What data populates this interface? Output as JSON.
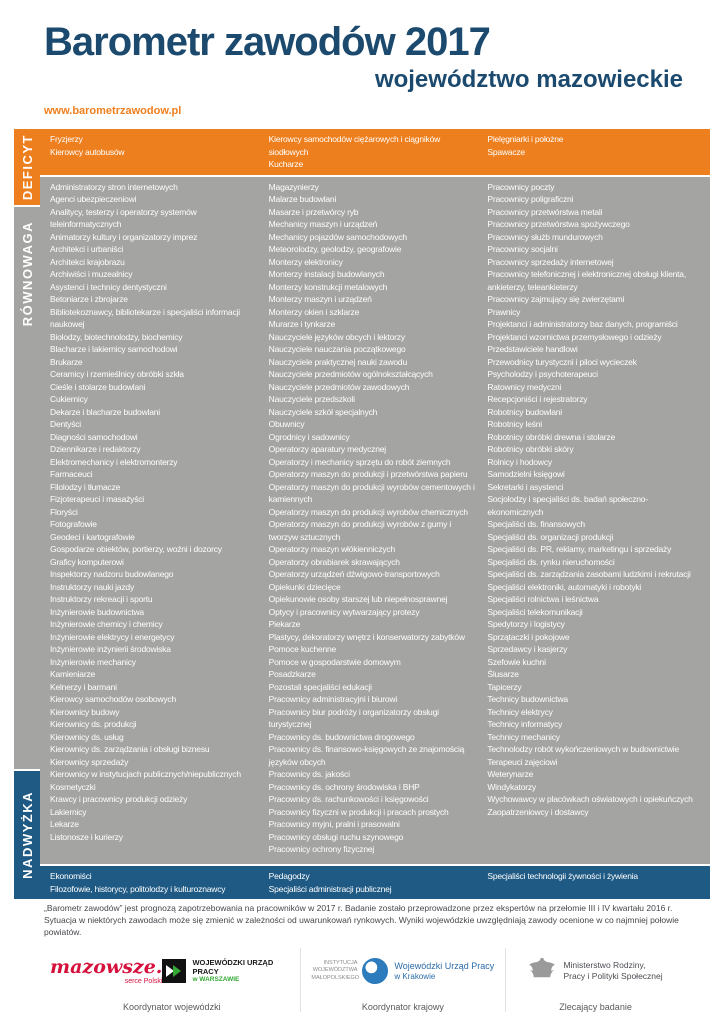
{
  "header": {
    "title": "Barometr zawodów 2017",
    "subtitle": "województwo mazowieckie",
    "url": "www.barometrzawodow.pl"
  },
  "colors": {
    "orange": "#ee7f1e",
    "gray": "#a4a4a2",
    "navy": "#1f5a84",
    "title_navy": "#1b4a6e"
  },
  "sections": [
    {
      "id": "deficyt",
      "label": "DEFICYT",
      "columns": [
        [
          "Fryzjerzy",
          "Kierowcy autobusów"
        ],
        [
          "Kierowcy samochodów ciężarowych i ciągników siodłowych",
          "Kucharze"
        ],
        [
          "Pielęgniarki i położne",
          "Spawacze"
        ]
      ]
    },
    {
      "id": "rownowaga",
      "label": "RÓWNOWAGA",
      "columns": [
        [
          "Administratorzy stron internetowych",
          "Agenci ubezpieczeniowi",
          "Analitycy, testerzy i operatorzy systemów teleinformatycznych",
          "Animatorzy kultury i organizatorzy imprez",
          "Architekci i urbaniści",
          "Architekci krajobrazu",
          "Archiwiści i muzealnicy",
          "Asystenci i technicy dentystyczni",
          "Betoniarze i zbrojarze",
          "Bibliotekoznawcy, bibliotekarze i specjaliści informacji naukowej",
          "Biolodzy, biotechnolodzy, biochemicy",
          "Blacharze i lakiernicy samochodowi",
          "Brukarze",
          "Ceramicy i rzemieślnicy obróbki szkła",
          "Cieśle i stolarze budowlani",
          "Cukiernicy",
          "Dekarze i blacharze budowlani",
          "Dentyści",
          "Diagności samochodowi",
          "Dziennikarze i redaktorzy",
          "Elektromechanicy i elektromonterzy",
          "Farmaceuci",
          "Filolodzy i tłumacze",
          "Fizjoterapeuci i masażyści",
          "Floryści",
          "Fotografowie",
          "Geodeci i kartografowie",
          "Gospodarze obiektów, portierzy, woźni i dozorcy",
          "Graficy komputerowi",
          "Inspektorzy nadzoru budowlanego",
          "Instruktorzy nauki jazdy",
          "Instruktorzy rekreacji i sportu",
          "Inżynierowie budownictwa",
          "Inżynierowie chemicy i chemicy",
          "Inżynierowie elektrycy i energetycy",
          "Inżynierowie inżynierii środowiska",
          "Inżynierowie mechanicy",
          "Kamieniarze",
          "Kelnerzy i barmani",
          "Kierowcy samochodów osobowych",
          "Kierownicy budowy",
          "Kierownicy ds. produkcji",
          "Kierownicy ds. usług",
          "Kierownicy ds. zarządzania i obsługi biznesu",
          "Kierownicy sprzedaży",
          "Kierownicy w instytucjach publicznych/niepublicznych",
          "Kosmetyczki",
          "Krawcy i pracownicy produkcji odzieży",
          "Lakiernicy",
          "Lekarze",
          "Listonosze i kurierzy"
        ],
        [
          "Magazynierzy",
          "Malarze budowlani",
          "Masarze i przetwórcy ryb",
          "Mechanicy maszyn i urządzeń",
          "Mechanicy pojazdów samochodowych",
          "Meteorolodzy, geolodzy, geografowie",
          "Monterzy elektronicy",
          "Monterzy instalacji budowlanych",
          "Monterzy konstrukcji metalowych",
          "Monterzy maszyn i urządzeń",
          "Monterzy okien i szklarze",
          "Murarze i tynkarze",
          "Nauczyciele języków obcych i lektorzy",
          "Nauczyciele nauczania początkowego",
          "Nauczyciele praktycznej nauki zawodu",
          "Nauczyciele przedmiotów ogólnokształcących",
          "Nauczyciele przedmiotów zawodowych",
          "Nauczyciele przedszkoli",
          "Nauczyciele szkół specjalnych",
          "Obuwnicy",
          "Ogrodnicy i sadownicy",
          "Operatorzy aparatury medycznej",
          "Operatorzy i mechanicy sprzętu do robót ziemnych",
          "Operatorzy maszyn do produkcji i przetwórstwa papieru",
          "Operatorzy maszyn do produkcji wyrobów cementowych i kamiennych",
          "Operatorzy maszyn do produkcji wyrobów chemicznych",
          "Operatorzy maszyn do produkcji wyrobów z gumy i tworzyw sztucznych",
          "Operatorzy maszyn włókienniczych",
          "Operatorzy obrabiarek skrawających",
          "Operatorzy urządzeń dźwigowo-transportowych",
          "Opiekunki dziecięce",
          "Opiekunowie osoby starszej lub niepełnosprawnej",
          "Optycy i pracownicy wytwarzający protezy",
          "Piekarze",
          "Plastycy, dekoratorzy wnętrz i konserwatorzy zabytków",
          "Pomoce kuchenne",
          "Pomoce w gospodarstwie domowym",
          "Posadzkarze",
          "Pozostali specjaliści edukacji",
          "Pracownicy administracyjni i biurowi",
          "Pracownicy biur podróży i organizatorzy obsługi turystycznej",
          "Pracownicy ds. budownictwa drogowego",
          "Pracownicy ds. finansowo-księgowych ze znajomością języków obcych",
          "Pracownicy ds. jakości",
          "Pracownicy ds. ochrony środowiska i BHP",
          "Pracownicy ds. rachunkowości i księgowości",
          "Pracownicy fizyczni w produkcji i pracach prostych",
          "Pracownicy myjni, pralni i prasowalni",
          "Pracownicy obsługi ruchu szynowego",
          "Pracownicy ochrony fizycznej"
        ],
        [
          "Pracownicy poczty",
          "Pracownicy poligraficzni",
          "Pracownicy przetwórstwa metali",
          "Pracownicy przetwórstwa spożywczego",
          "Pracownicy służb mundurowych",
          "Pracownicy socjalni",
          "Pracownicy sprzedaży internetowej",
          "Pracownicy telefonicznej i elektronicznej obsługi klienta, ankieterzy, teleankieterzy",
          "Pracownicy zajmujący się zwierzętami",
          "Prawnicy",
          "Projektanci i administratorzy baz danych, programiści",
          "Projektanci wzornictwa przemysłowego i odzieży",
          "Przedstawiciele handlowi",
          "Przewodnicy turystyczni i piloci wycieczek",
          "Psycholodzy i psychoterapeuci",
          "Ratownicy medyczni",
          "Recepcjoniści i rejestratorzy",
          "Robotnicy budowlani",
          "Robotnicy leśni",
          "Robotnicy obróbki drewna i stolarze",
          "Robotnicy obróbki skóry",
          "Rolnicy i hodowcy",
          "Samodzielni księgowi",
          "Sekretarki i asystenci",
          "Socjolodzy i specjaliści ds. badań społeczno-ekonomicznych",
          "Specjaliści ds. finansowych",
          "Specjaliści ds. organizacji produkcji",
          "Specjaliści ds. PR, reklamy, marketingu i sprzedaży",
          "Specjaliści ds. rynku nieruchomości",
          "Specjaliści ds. zarządzania zasobami ludzkimi i rekrutacji",
          "Specjaliści elektroniki, automatyki i robotyki",
          "Specjaliści rolnictwa i leśnictwa",
          "Specjaliści telekomunikacji",
          "Spedytorzy i logistycy",
          "Sprzątaczki i pokojowe",
          "Sprzedawcy i kasjerzy",
          "Szefowie kuchni",
          "Ślusarze",
          "Tapicerzy",
          "Technicy budownictwa",
          "Technicy elektrycy",
          "Technicy informatycy",
          "Technicy mechanicy",
          "Technolodzy robót wykończeniowych w budownictwie",
          "Terapeuci zajęciowi",
          "Weterynarze",
          "Windykatorzy",
          "Wychowawcy w placówkach oświatowych i opiekuńczych",
          "Zaopatrzeniowcy i dostawcy"
        ]
      ]
    },
    {
      "id": "nadwyzka",
      "label": "NADWYŻKA",
      "columns": [
        [
          "Ekonomiści",
          "Filozofowie, historycy, politolodzy i kulturoznawcy"
        ],
        [
          "Pedagodzy",
          "Specjaliści administracji publicznej"
        ],
        [
          "Specjaliści technologii żywności i żywienia"
        ]
      ]
    }
  ],
  "footnote": "„Barometr zawodów” jest prognozą zapotrzebowania na pracowników w 2017 r. Badanie zostało przeprowadzone przez ekspertów na przełomie III i IV kwartału 2016 r. Sytuacja w niektórych zawodach może się zmienić w zależności od uwarunkowań rynkowych. Wyniki wojewódzkie uwzględniają zawody ocenione w co najmniej połowie powiatów.",
  "footer": {
    "logos": {
      "mazowsze": {
        "text": "mazowsze.",
        "subtext": "serce Polski"
      },
      "wup_warszawa": {
        "line1": "WOJEWÓDZKI URZĄD PRACY",
        "line2": "w WARSZAWIE"
      },
      "wup_krakow": {
        "small": "INSTYTUCJA WOJEWÓDZTWA MAŁOPOLSKIEGO",
        "line1": "Wojewódzki Urząd Pracy",
        "line2": "w Krakowie"
      },
      "ministerstwo": {
        "line1": "Ministerstwo Rodziny,",
        "line2": "Pracy i Polityki Społecznej"
      }
    },
    "captions": [
      "Koordynator wojewódzki",
      "Koordynator krajowy",
      "Zlecający badanie"
    ]
  }
}
